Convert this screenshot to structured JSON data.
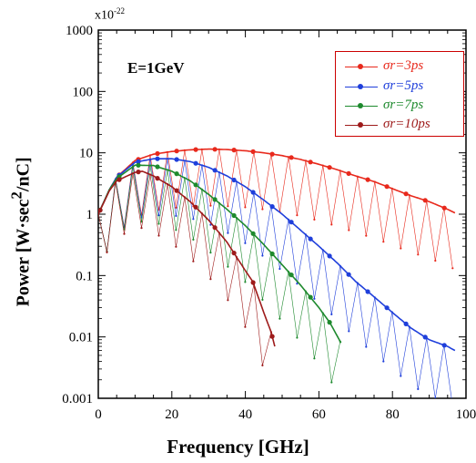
{
  "chart_data": {
    "type": "line",
    "title": "",
    "xlabel": "Frequency [GHz]",
    "ylabel_main": "Power [W·sec",
    "ylabel_sup": "2",
    "ylabel_tail": "/nC]",
    "multiplier_base": "x10",
    "multiplier_exp": "-22",
    "annotation": "E=1GeV",
    "xlim": [
      0,
      100
    ],
    "ylim": [
      0.001,
      1000
    ],
    "yscale": "log",
    "grid": false,
    "legend_position": "top-right",
    "x_ticks": [
      "0",
      "20",
      "40",
      "60",
      "80",
      "100"
    ],
    "y_ticks": [
      "0.001",
      "0.01",
      "0.1",
      "1",
      "10",
      "100",
      "1000"
    ],
    "series": [
      {
        "name": "σr=3ps",
        "color": "#e8291c",
        "sigma": 3,
        "envelope": [
          [
            0,
            1.0
          ],
          [
            3,
            2.5
          ],
          [
            5,
            4
          ],
          [
            10,
            7.5
          ],
          [
            15,
            9.5
          ],
          [
            20,
            10.5
          ],
          [
            25,
            11.2
          ],
          [
            30,
            11.5
          ],
          [
            35,
            11.3
          ],
          [
            40,
            10.8
          ],
          [
            45,
            10
          ],
          [
            50,
            9
          ],
          [
            55,
            7.8
          ],
          [
            60,
            6.5
          ],
          [
            65,
            5.3
          ],
          [
            70,
            4.2
          ],
          [
            75,
            3.4
          ],
          [
            80,
            2.6
          ],
          [
            85,
            2.0
          ],
          [
            90,
            1.6
          ],
          [
            95,
            1.2
          ],
          [
            97,
            1.05
          ]
        ]
      },
      {
        "name": "σr=5ps",
        "color": "#1f3fdb",
        "sigma": 5,
        "envelope": [
          [
            0,
            1.0
          ],
          [
            3,
            2.5
          ],
          [
            5,
            4
          ],
          [
            10,
            7
          ],
          [
            15,
            8
          ],
          [
            20,
            8
          ],
          [
            25,
            7.2
          ],
          [
            30,
            5.8
          ],
          [
            35,
            4.2
          ],
          [
            40,
            2.8
          ],
          [
            45,
            1.7
          ],
          [
            50,
            1.0
          ],
          [
            55,
            0.55
          ],
          [
            60,
            0.3
          ],
          [
            65,
            0.16
          ],
          [
            70,
            0.08
          ],
          [
            75,
            0.045
          ],
          [
            80,
            0.025
          ],
          [
            85,
            0.014
          ],
          [
            90,
            0.009
          ],
          [
            95,
            0.007
          ],
          [
            97,
            0.006
          ]
        ]
      },
      {
        "name": "σr=7ps",
        "color": "#1e8a2e",
        "sigma": 7,
        "envelope": [
          [
            0,
            1.0
          ],
          [
            3,
            2.5
          ],
          [
            5,
            3.8
          ],
          [
            10,
            6.3
          ],
          [
            15,
            6.2
          ],
          [
            20,
            5
          ],
          [
            25,
            3.5
          ],
          [
            30,
            2.1
          ],
          [
            35,
            1.2
          ],
          [
            40,
            0.65
          ],
          [
            45,
            0.32
          ],
          [
            50,
            0.15
          ],
          [
            55,
            0.07
          ],
          [
            60,
            0.03
          ],
          [
            63,
            0.017
          ],
          [
            66,
            0.008
          ]
        ]
      },
      {
        "name": "σr=10ps",
        "color": "#9e1b1b",
        "sigma": 10,
        "envelope": [
          [
            0,
            1.0
          ],
          [
            3,
            2.4
          ],
          [
            5,
            3.5
          ],
          [
            10,
            4.8
          ],
          [
            12,
            5
          ],
          [
            15,
            4.2
          ],
          [
            20,
            2.8
          ],
          [
            25,
            1.6
          ],
          [
            30,
            0.8
          ],
          [
            35,
            0.35
          ],
          [
            40,
            0.12
          ],
          [
            42,
            0.08
          ],
          [
            45,
            0.025
          ],
          [
            47,
            0.012
          ],
          [
            48,
            0.007
          ]
        ]
      }
    ],
    "oscillation_period_ghz": 4.7,
    "dip_factor": 0.12
  }
}
